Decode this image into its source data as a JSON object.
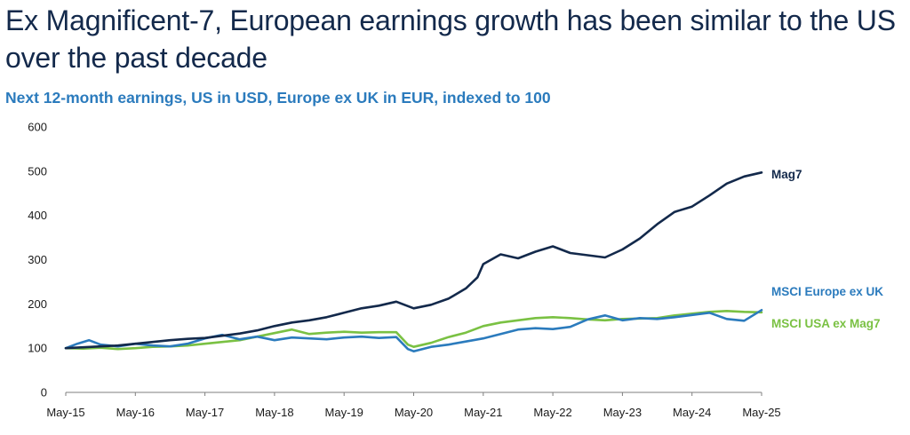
{
  "header": {
    "title": "Ex Magnificent-7, European earnings growth has been similar to the US over the past decade",
    "subtitle": "Next 12-month earnings, US in USD, Europe ex UK in EUR, indexed to 100"
  },
  "chart_data": {
    "type": "line",
    "title": "Ex Magnificent-7, European earnings growth has been similar to the US over the past decade",
    "subtitle": "Next 12-month earnings, US in USD, Europe ex UK in EUR, indexed to 100",
    "xlabel": "",
    "ylabel": "",
    "ylim": [
      0,
      600
    ],
    "yticks": [
      0,
      100,
      200,
      300,
      400,
      500,
      600
    ],
    "xlim": [
      "May-15",
      "May-25"
    ],
    "xticks": [
      "May-15",
      "May-16",
      "May-17",
      "May-18",
      "May-19",
      "May-20",
      "May-21",
      "May-22",
      "May-23",
      "May-24",
      "May-25"
    ],
    "grid": false,
    "legend": "direct labels at right end of lines",
    "series": [
      {
        "name": "Mag7",
        "color": "#13294b",
        "points": [
          [
            "2015-05",
            100
          ],
          [
            "2015-08",
            102
          ],
          [
            "2015-11",
            104
          ],
          [
            "2016-02",
            106
          ],
          [
            "2016-05",
            110
          ],
          [
            "2016-08",
            114
          ],
          [
            "2016-11",
            118
          ],
          [
            "2017-02",
            121
          ],
          [
            "2017-05",
            123
          ],
          [
            "2017-08",
            128
          ],
          [
            "2017-11",
            133
          ],
          [
            "2018-02",
            140
          ],
          [
            "2018-05",
            150
          ],
          [
            "2018-08",
            158
          ],
          [
            "2018-11",
            163
          ],
          [
            "2019-02",
            170
          ],
          [
            "2019-05",
            180
          ],
          [
            "2019-08",
            190
          ],
          [
            "2019-11",
            196
          ],
          [
            "2020-02",
            205
          ],
          [
            "2020-05",
            190
          ],
          [
            "2020-08",
            198
          ],
          [
            "2020-11",
            212
          ],
          [
            "2021-02",
            235
          ],
          [
            "2021-04",
            260
          ],
          [
            "2021-05",
            290
          ],
          [
            "2021-08",
            312
          ],
          [
            "2021-11",
            303
          ],
          [
            "2022-02",
            318
          ],
          [
            "2022-05",
            330
          ],
          [
            "2022-08",
            315
          ],
          [
            "2022-11",
            310
          ],
          [
            "2023-02",
            305
          ],
          [
            "2023-05",
            323
          ],
          [
            "2023-08",
            348
          ],
          [
            "2023-11",
            380
          ],
          [
            "2024-02",
            408
          ],
          [
            "2024-05",
            420
          ],
          [
            "2024-08",
            445
          ],
          [
            "2024-11",
            472
          ],
          [
            "2025-02",
            488
          ],
          [
            "2025-05",
            497
          ]
        ]
      },
      {
        "name": "MSCI Europe ex UK",
        "color": "#2b7bbd",
        "points": [
          [
            "2015-05",
            100
          ],
          [
            "2015-07",
            110
          ],
          [
            "2015-09",
            118
          ],
          [
            "2015-11",
            108
          ],
          [
            "2016-02",
            104
          ],
          [
            "2016-05",
            110
          ],
          [
            "2016-08",
            106
          ],
          [
            "2016-11",
            104
          ],
          [
            "2017-02",
            110
          ],
          [
            "2017-05",
            122
          ],
          [
            "2017-08",
            130
          ],
          [
            "2017-11",
            120
          ],
          [
            "2018-02",
            126
          ],
          [
            "2018-05",
            118
          ],
          [
            "2018-08",
            124
          ],
          [
            "2018-11",
            122
          ],
          [
            "2019-02",
            120
          ],
          [
            "2019-05",
            124
          ],
          [
            "2019-08",
            126
          ],
          [
            "2019-11",
            123
          ],
          [
            "2020-02",
            125
          ],
          [
            "2020-04",
            98
          ],
          [
            "2020-05",
            93
          ],
          [
            "2020-08",
            103
          ],
          [
            "2020-11",
            108
          ],
          [
            "2021-02",
            115
          ],
          [
            "2021-05",
            122
          ],
          [
            "2021-08",
            132
          ],
          [
            "2021-11",
            142
          ],
          [
            "2022-02",
            145
          ],
          [
            "2022-05",
            143
          ],
          [
            "2022-08",
            148
          ],
          [
            "2022-11",
            165
          ],
          [
            "2023-02",
            174
          ],
          [
            "2023-05",
            163
          ],
          [
            "2023-08",
            168
          ],
          [
            "2023-11",
            166
          ],
          [
            "2024-02",
            170
          ],
          [
            "2024-05",
            175
          ],
          [
            "2024-08",
            180
          ],
          [
            "2024-11",
            166
          ],
          [
            "2025-02",
            162
          ],
          [
            "2025-05",
            186
          ]
        ]
      },
      {
        "name": "MSCI USA ex Mag7",
        "color": "#7ac143",
        "points": [
          [
            "2015-05",
            100
          ],
          [
            "2015-08",
            99
          ],
          [
            "2015-11",
            101
          ],
          [
            "2016-02",
            98
          ],
          [
            "2016-05",
            100
          ],
          [
            "2016-08",
            103
          ],
          [
            "2016-11",
            104
          ],
          [
            "2017-02",
            106
          ],
          [
            "2017-05",
            110
          ],
          [
            "2017-08",
            114
          ],
          [
            "2017-11",
            118
          ],
          [
            "2018-02",
            126
          ],
          [
            "2018-05",
            134
          ],
          [
            "2018-08",
            142
          ],
          [
            "2018-11",
            132
          ],
          [
            "2019-02",
            135
          ],
          [
            "2019-05",
            137
          ],
          [
            "2019-08",
            135
          ],
          [
            "2019-11",
            136
          ],
          [
            "2020-02",
            136
          ],
          [
            "2020-04",
            108
          ],
          [
            "2020-05",
            103
          ],
          [
            "2020-08",
            112
          ],
          [
            "2020-11",
            125
          ],
          [
            "2021-02",
            135
          ],
          [
            "2021-05",
            150
          ],
          [
            "2021-08",
            158
          ],
          [
            "2021-11",
            163
          ],
          [
            "2022-02",
            168
          ],
          [
            "2022-05",
            170
          ],
          [
            "2022-08",
            168
          ],
          [
            "2022-11",
            165
          ],
          [
            "2023-02",
            163
          ],
          [
            "2023-05",
            166
          ],
          [
            "2023-08",
            167
          ],
          [
            "2023-11",
            168
          ],
          [
            "2024-02",
            174
          ],
          [
            "2024-05",
            178
          ],
          [
            "2024-08",
            182
          ],
          [
            "2024-11",
            184
          ],
          [
            "2025-02",
            182
          ],
          [
            "2025-05",
            181
          ]
        ]
      }
    ]
  }
}
